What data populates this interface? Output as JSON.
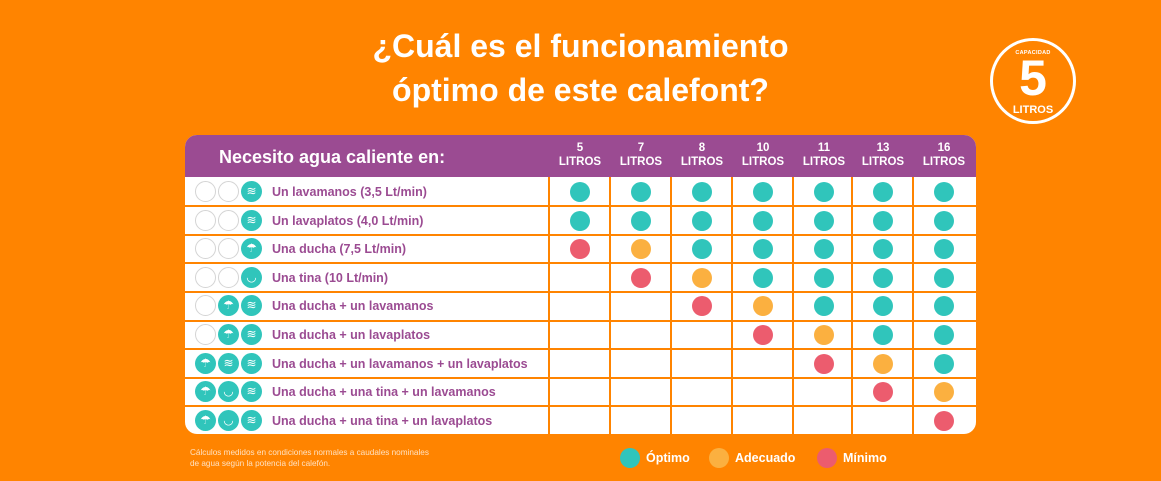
{
  "title_line1": "¿Cuál es el funcionamiento",
  "title_line2": "óptimo de este calefont?",
  "badge": {
    "top": "CAPACIDAD",
    "number": "5",
    "unit": "LITROS"
  },
  "colors": {
    "background": "#ff8400",
    "header": "#9b4b92",
    "optimo": "#30c5bb",
    "adecuado": "#fbb040",
    "minimo": "#ec5c6e"
  },
  "chart_data": {
    "type": "table",
    "row_header": "Necesito agua caliente en:",
    "columns": [
      {
        "num": "5",
        "unit": "LITROS"
      },
      {
        "num": "7",
        "unit": "LITROS"
      },
      {
        "num": "8",
        "unit": "LITROS"
      },
      {
        "num": "10",
        "unit": "LITROS"
      },
      {
        "num": "11",
        "unit": "LITROS"
      },
      {
        "num": "13",
        "unit": "LITROS"
      },
      {
        "num": "16",
        "unit": "LITROS"
      }
    ],
    "rows": [
      {
        "label": "Un lavamanos (3,5 Lt/min)",
        "icons": [
          "",
          "",
          "lavamanos-icon"
        ],
        "values": [
          "optimo",
          "optimo",
          "optimo",
          "optimo",
          "optimo",
          "optimo",
          "optimo"
        ]
      },
      {
        "label": "Un lavaplatos (4,0 Lt/min)",
        "icons": [
          "",
          "",
          "lavaplatos-icon"
        ],
        "values": [
          "optimo",
          "optimo",
          "optimo",
          "optimo",
          "optimo",
          "optimo",
          "optimo"
        ]
      },
      {
        "label": "Una ducha (7,5 Lt/min)",
        "icons": [
          "",
          "",
          "ducha-icon"
        ],
        "values": [
          "minimo",
          "adecuado",
          "optimo",
          "optimo",
          "optimo",
          "optimo",
          "optimo"
        ]
      },
      {
        "label": "Una tina (10 Lt/min)",
        "icons": [
          "",
          "",
          "tina-icon"
        ],
        "values": [
          "",
          "minimo",
          "adecuado",
          "optimo",
          "optimo",
          "optimo",
          "optimo"
        ]
      },
      {
        "label": "Una ducha + un lavamanos",
        "icons": [
          "",
          "ducha-icon",
          "lavamanos-icon"
        ],
        "values": [
          "",
          "",
          "minimo",
          "adecuado",
          "optimo",
          "optimo",
          "optimo"
        ]
      },
      {
        "label": "Una ducha + un lavaplatos",
        "icons": [
          "",
          "ducha-icon",
          "lavaplatos-icon"
        ],
        "values": [
          "",
          "",
          "",
          "minimo",
          "adecuado",
          "optimo",
          "optimo"
        ]
      },
      {
        "label": "Una ducha + un lavamanos + un lavaplatos",
        "icons": [
          "ducha-icon",
          "lavamanos-icon",
          "lavaplatos-icon"
        ],
        "values": [
          "",
          "",
          "",
          "",
          "minimo",
          "adecuado",
          "optimo"
        ]
      },
      {
        "label": "Una ducha + una tina + un lavamanos",
        "icons": [
          "ducha-icon",
          "tina-icon",
          "lavamanos-icon"
        ],
        "values": [
          "",
          "",
          "",
          "",
          "",
          "minimo",
          "adecuado"
        ]
      },
      {
        "label": "Una ducha + una tina + un lavaplatos",
        "icons": [
          "ducha-icon",
          "tina-icon",
          "lavaplatos-icon"
        ],
        "values": [
          "",
          "",
          "",
          "",
          "",
          "",
          "minimo"
        ]
      }
    ]
  },
  "footnote_line1": "Cálculos medidos en condiciones normales a caudales nominales",
  "footnote_line2": "de agua según la potencia del calefón.",
  "legend": [
    {
      "key": "optimo",
      "label": "Óptimo"
    },
    {
      "key": "adecuado",
      "label": "Adecuado"
    },
    {
      "key": "minimo",
      "label": "Mínimo"
    }
  ]
}
